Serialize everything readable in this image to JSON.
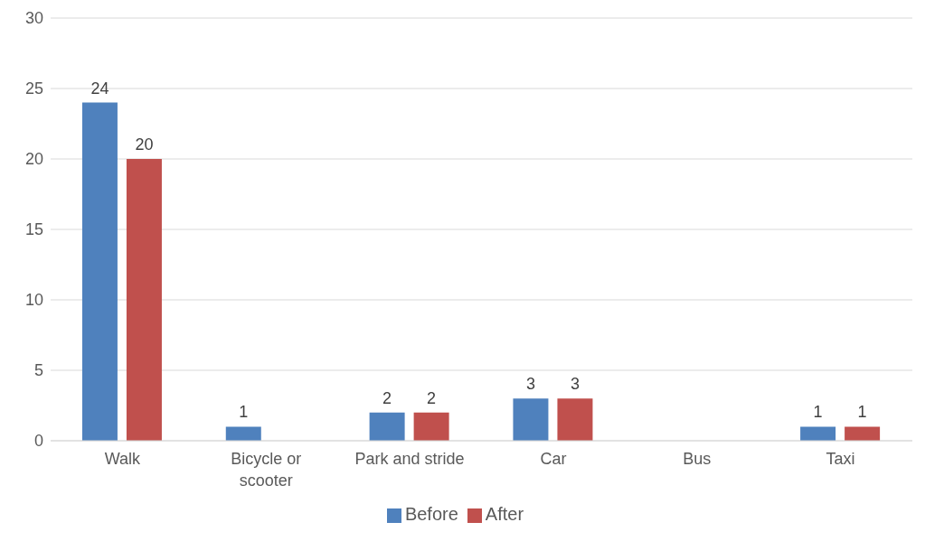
{
  "chart_data": {
    "type": "bar",
    "categories": [
      "Walk",
      "Bicycle or scooter",
      "Park and stride",
      "Car",
      "Bus",
      "Taxi"
    ],
    "series": [
      {
        "name": "Before",
        "color": "#4f81bd",
        "values": [
          24,
          1,
          2,
          3,
          0,
          1
        ],
        "value_labels": [
          "24",
          "1",
          "2",
          "3",
          null,
          "1"
        ]
      },
      {
        "name": "After",
        "color": "#c0504d",
        "values": [
          20,
          0,
          2,
          3,
          0,
          1
        ],
        "value_labels": [
          "20",
          null,
          "2",
          "3",
          null,
          "1"
        ]
      }
    ],
    "ylim": [
      0,
      30
    ],
    "yticks": [
      0,
      5,
      10,
      15,
      20,
      25,
      30
    ],
    "grid": "y",
    "legend": "bottom"
  }
}
